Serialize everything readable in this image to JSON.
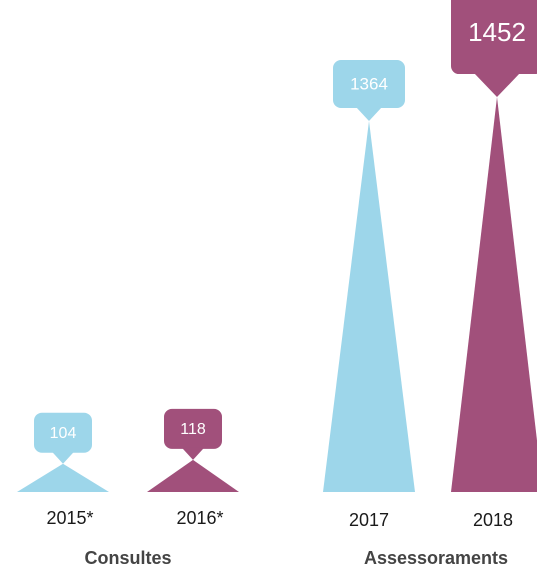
{
  "chart_data": {
    "type": "triangle-bar",
    "categories": [
      "2015*",
      "2016*",
      "2017",
      "2018"
    ],
    "values": [
      104,
      118,
      1364,
      1452
    ],
    "colors": [
      "#9dd6ea",
      "#a1507b",
      "#9dd6ea",
      "#a1507b"
    ],
    "groups": [
      {
        "label": "Consultes"
      },
      {
        "label": "Assessoraments"
      }
    ]
  }
}
